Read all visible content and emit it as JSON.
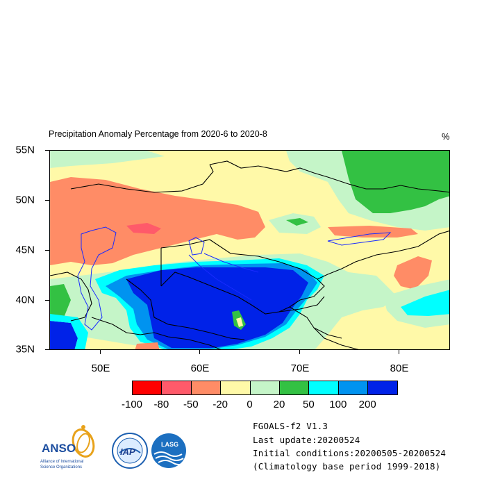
{
  "title": "Precipitation Anomaly Percentage from 2020-6 to 2020-8",
  "units": "%",
  "lat_labels": [
    "55N",
    "50N",
    "45N",
    "40N",
    "35N"
  ],
  "lon_labels": [
    "50E",
    "60E",
    "70E",
    "80E"
  ],
  "colorbar": {
    "labels": [
      "-100",
      "-80",
      "-50",
      "-20",
      "0",
      "20",
      "50",
      "100",
      "200"
    ],
    "colors": [
      "#ff0000",
      "#ff5a6a",
      "#ff8c66",
      "#fff9a8",
      "#c5f5c8",
      "#33c143",
      "#00ffff",
      "#0093f0",
      "#0022e8"
    ]
  },
  "info": {
    "model": "FGOALS-f2 V1.3",
    "last_update": "Last update:20200524",
    "initial_conditions": "Initial conditions:20200505-20200524",
    "climatology": "(Climatology base period 1999-2018)"
  },
  "logos": {
    "anso_name": "ANSO",
    "anso_caption_1": "Alliance of International",
    "anso_caption_2": "Science Organizations",
    "iap": "IAP",
    "lasg": "LASG"
  }
}
